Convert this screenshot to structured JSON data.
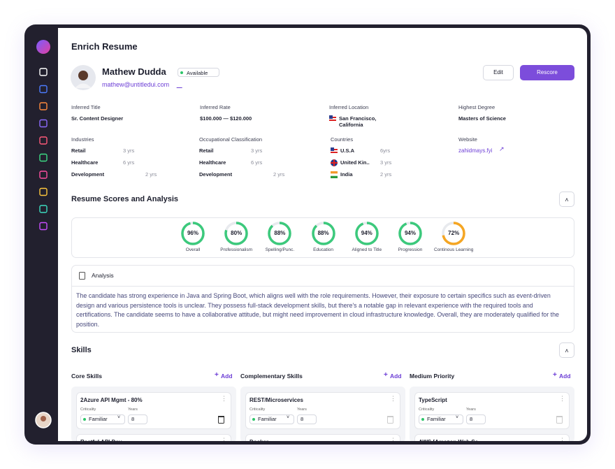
{
  "header": {
    "title": "Enrich Resume"
  },
  "profile": {
    "name": "Mathew Dudda",
    "status": "Available",
    "email": "mathew@untitledui.com",
    "edit": "Edit",
    "rescore": "Rescore"
  },
  "details": [
    {
      "label": "Inferred Title",
      "value": "Sr. Content Designer"
    },
    {
      "label": "Inferred Rate",
      "value": "$100.000 — $120.000"
    },
    {
      "label": "Inferred Location",
      "value": "San Francisco, California"
    },
    {
      "label": "Highest Degree",
      "value": "Masters of Science"
    }
  ],
  "experience": [
    {
      "label": "Industries",
      "rows": [
        {
          "name": "Retail",
          "years": "3 yrs"
        },
        {
          "name": "Healthcare",
          "years": "6 yrs"
        },
        {
          "name": "Development",
          "years": "2 yrs"
        }
      ]
    },
    {
      "label": "Occupational Classification",
      "rows": [
        {
          "name": "Retail",
          "years": "3 yrs"
        },
        {
          "name": "Healthcare",
          "years": "6 yrs"
        },
        {
          "name": "Development",
          "years": "2 yrs"
        }
      ]
    },
    {
      "label": "Countries",
      "rows": [
        {
          "name": "U.S.A",
          "years": "6yrs"
        },
        {
          "name": "United Kin..",
          "years": "3 yrs"
        },
        {
          "name": "India",
          "years": "2 yrs"
        }
      ]
    }
  ],
  "website": {
    "label": "Website",
    "value": "zahidmays.fyi"
  },
  "scores": {
    "title": "Resume Scores and Analysis",
    "items": [
      {
        "name": "Overall",
        "value": 96,
        "label": "96%",
        "color": "#3cc97c"
      },
      {
        "name": "Professionalism",
        "value": 80,
        "label": "80%",
        "color": "#3cc97c"
      },
      {
        "name": "Spelling/Punc.",
        "value": 88,
        "label": "88%",
        "color": "#3cc97c"
      },
      {
        "name": "Education",
        "value": 88,
        "label": "88%",
        "color": "#3cc97c"
      },
      {
        "name": "Aligned to Title",
        "value": 94,
        "label": "94%",
        "color": "#3cc97c"
      },
      {
        "name": "Progression",
        "value": 94,
        "label": "94%",
        "color": "#3cc97c"
      },
      {
        "name": "Continous Learning",
        "value": 72,
        "label": "72%",
        "color": "#f5a623"
      }
    ]
  },
  "analysis": {
    "title": "Analysis",
    "text": "The candidate has strong experience in Java and Spring Boot, which aligns well with the role requirements. However, their exposure to certain specifics such as event-driven design and various persistence tools is unclear. They possess full-stack development skills, but there's a notable gap in relevant experience with the required tools and certifications. The candidate seems to have a collaborative attitude, but might need improvement in cloud infrastructure knowledge. Overall, they are moderately qualified for the position."
  },
  "skills": {
    "title": "Skills",
    "columns": [
      {
        "title": "Core Skills",
        "add": "Add",
        "cards": [
          {
            "name": "2Azure API Mgmt - 80%",
            "criticality_label": "Criticality",
            "years_label": "Years",
            "criticality": "Familiar",
            "years": "8"
          },
          {
            "name": "Restful API Dev"
          }
        ]
      },
      {
        "title": "Complementary Skills",
        "add": "Add",
        "cards": [
          {
            "name": "REST/Microservices",
            "criticality_label": "Criticality",
            "years_label": "Years",
            "criticality": "Familiar",
            "years": "8"
          },
          {
            "name": "Docker"
          }
        ]
      },
      {
        "title": "Medium Priority",
        "add": "Add",
        "cards": [
          {
            "name": "TypeScript",
            "criticality_label": "Criticality",
            "years_label": "Years",
            "criticality": "Familiar",
            "years": "8"
          },
          {
            "name": "AWS [Amazon Web Se"
          }
        ]
      }
    ]
  }
}
